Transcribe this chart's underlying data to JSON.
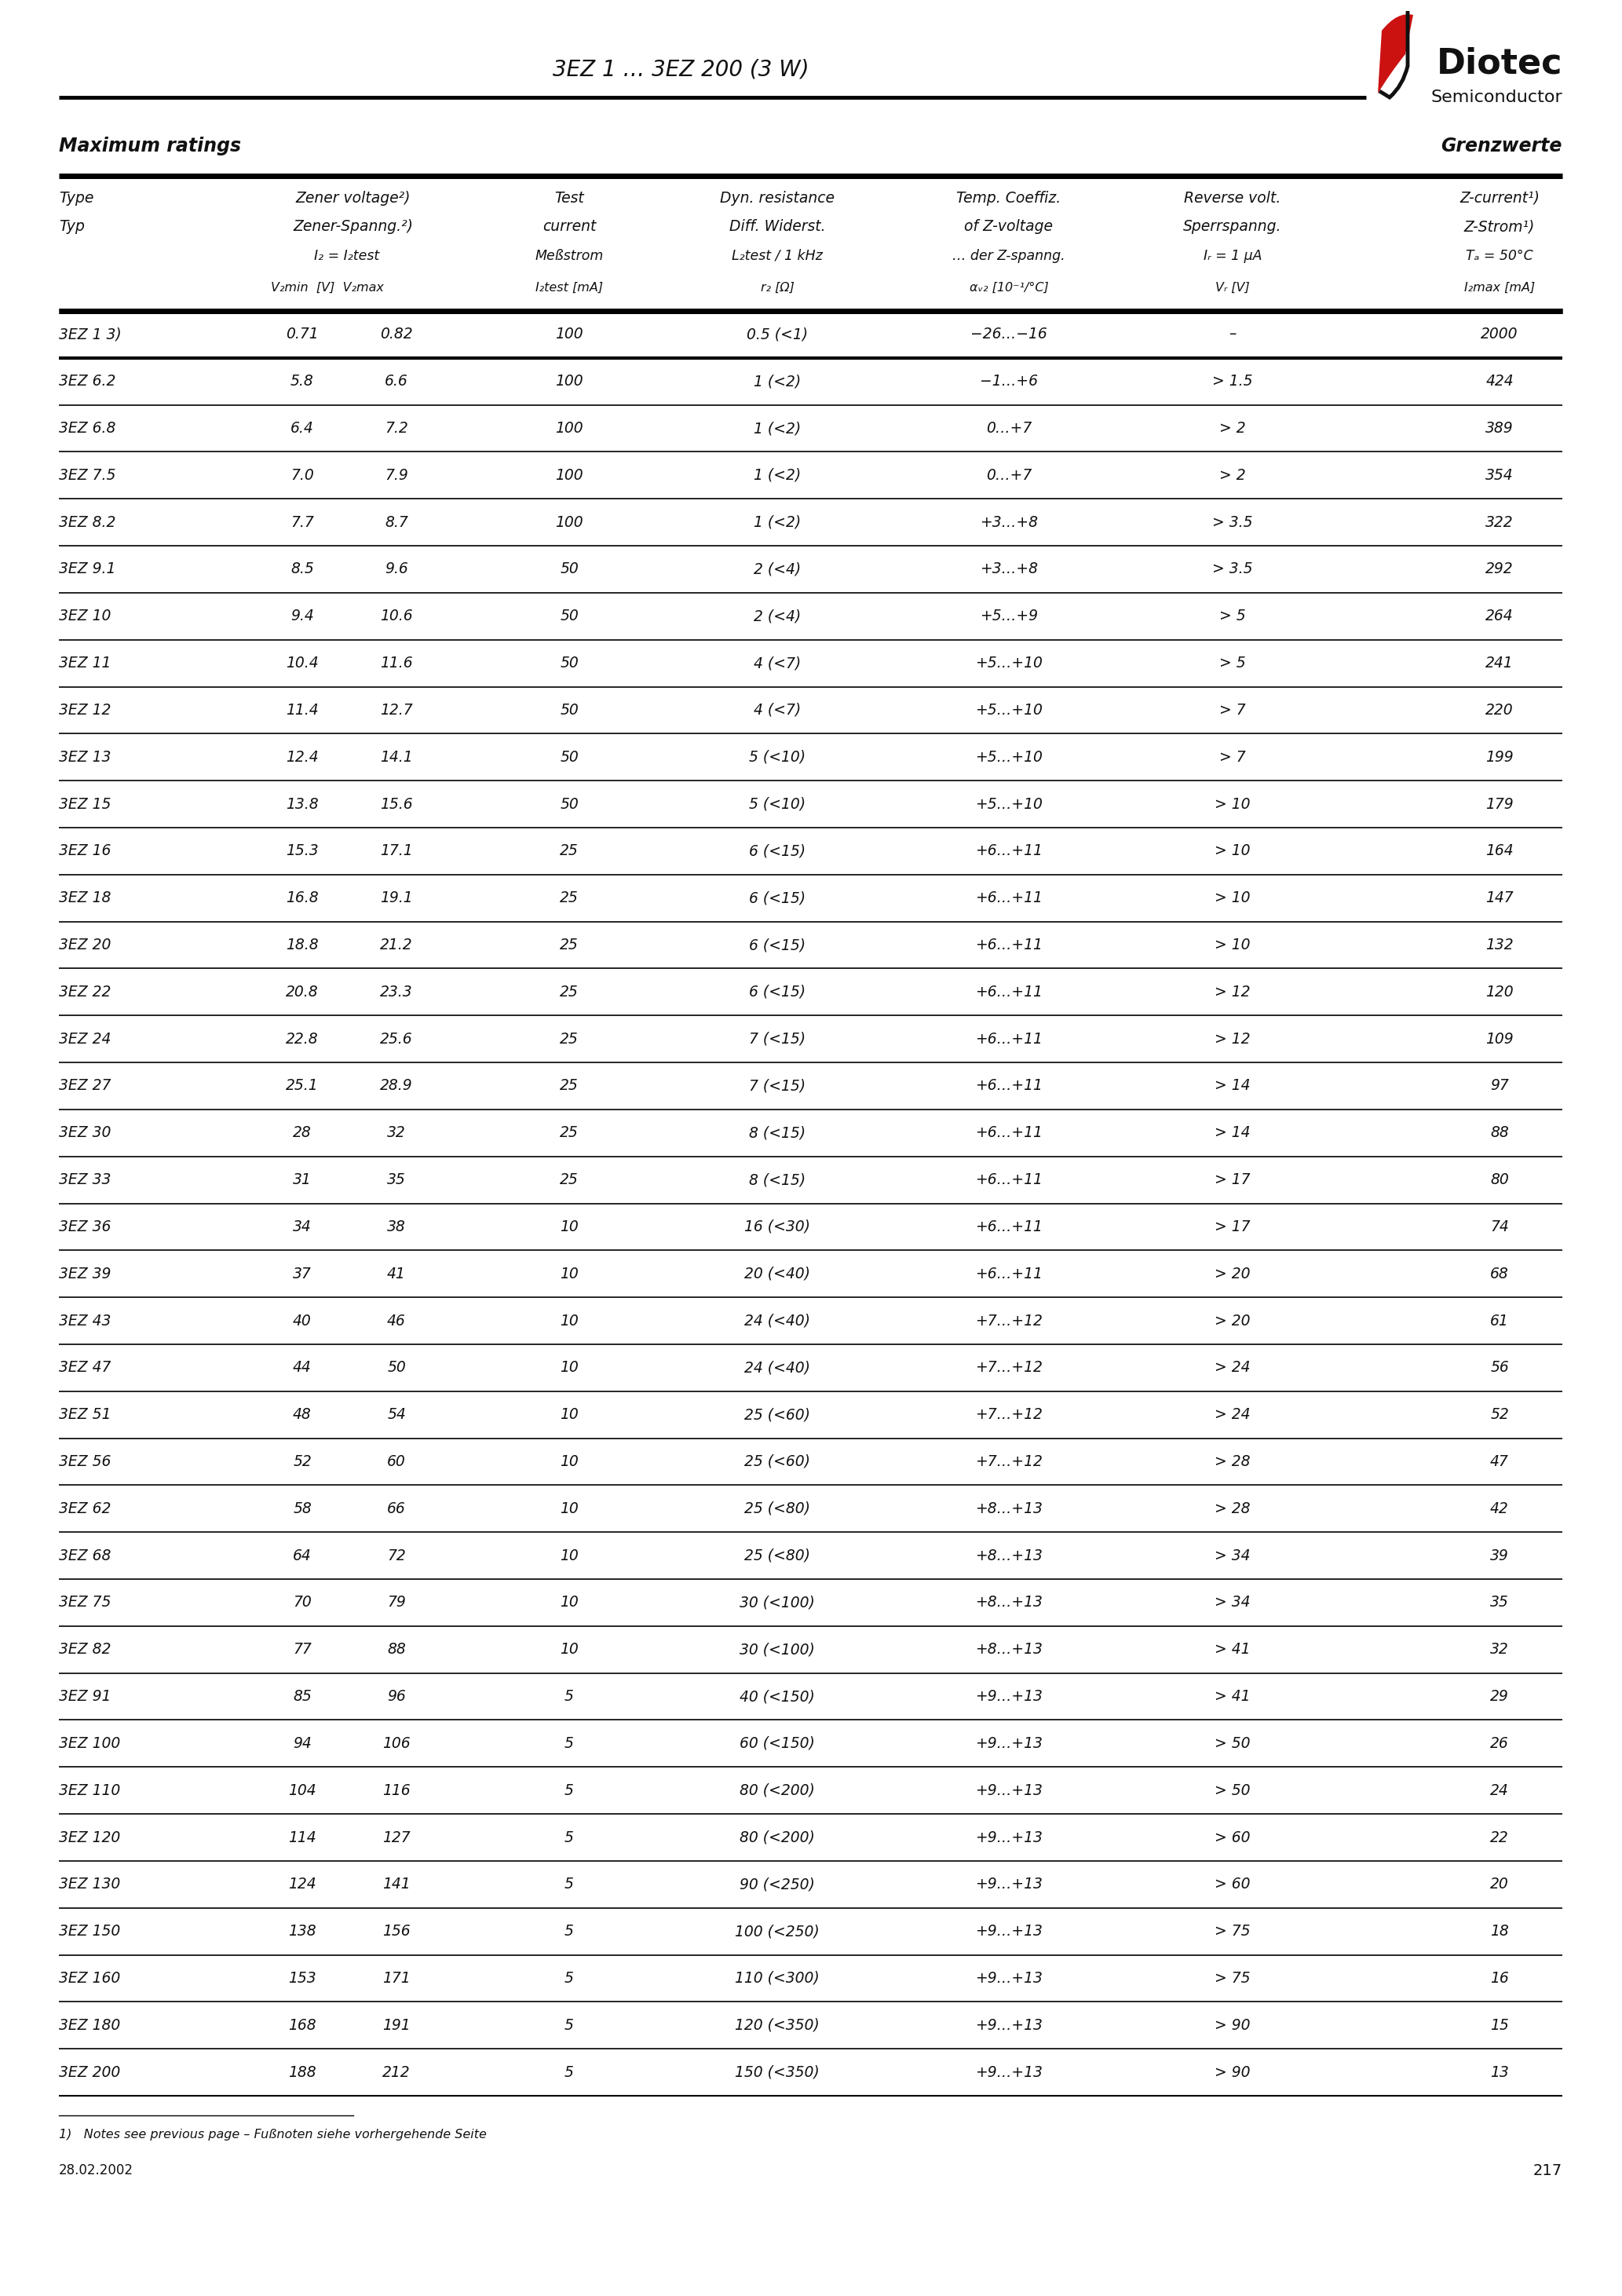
{
  "title": "3EZ 1 … 3EZ 200 (3 W)",
  "header_left": "Maximum ratings",
  "header_right": "Grenzwerte",
  "rows": [
    [
      "3EZ 1 3)",
      "0.71",
      "0.82",
      "100",
      "0.5 (<1)",
      "−26…−16",
      "–",
      "2000"
    ],
    [
      "3EZ 6.2",
      "5.8",
      "6.6",
      "100",
      "1 (<2)",
      "−1…+6",
      "> 1.5",
      "424"
    ],
    [
      "3EZ 6.8",
      "6.4",
      "7.2",
      "100",
      "1 (<2)",
      "0…+7",
      "> 2",
      "389"
    ],
    [
      "3EZ 7.5",
      "7.0",
      "7.9",
      "100",
      "1 (<2)",
      "0…+7",
      "> 2",
      "354"
    ],
    [
      "3EZ 8.2",
      "7.7",
      "8.7",
      "100",
      "1 (<2)",
      "+3…+8",
      "> 3.5",
      "322"
    ],
    [
      "3EZ 9.1",
      "8.5",
      "9.6",
      "50",
      "2 (<4)",
      "+3…+8",
      "> 3.5",
      "292"
    ],
    [
      "3EZ 10",
      "9.4",
      "10.6",
      "50",
      "2 (<4)",
      "+5…+9",
      "> 5",
      "264"
    ],
    [
      "3EZ 11",
      "10.4",
      "11.6",
      "50",
      "4 (<7)",
      "+5…+10",
      "> 5",
      "241"
    ],
    [
      "3EZ 12",
      "11.4",
      "12.7",
      "50",
      "4 (<7)",
      "+5…+10",
      "> 7",
      "220"
    ],
    [
      "3EZ 13",
      "12.4",
      "14.1",
      "50",
      "5 (<10)",
      "+5…+10",
      "> 7",
      "199"
    ],
    [
      "3EZ 15",
      "13.8",
      "15.6",
      "50",
      "5 (<10)",
      "+5…+10",
      "> 10",
      "179"
    ],
    [
      "3EZ 16",
      "15.3",
      "17.1",
      "25",
      "6 (<15)",
      "+6…+11",
      "> 10",
      "164"
    ],
    [
      "3EZ 18",
      "16.8",
      "19.1",
      "25",
      "6 (<15)",
      "+6…+11",
      "> 10",
      "147"
    ],
    [
      "3EZ 20",
      "18.8",
      "21.2",
      "25",
      "6 (<15)",
      "+6…+11",
      "> 10",
      "132"
    ],
    [
      "3EZ 22",
      "20.8",
      "23.3",
      "25",
      "6 (<15)",
      "+6…+11",
      "> 12",
      "120"
    ],
    [
      "3EZ 24",
      "22.8",
      "25.6",
      "25",
      "7 (<15)",
      "+6…+11",
      "> 12",
      "109"
    ],
    [
      "3EZ 27",
      "25.1",
      "28.9",
      "25",
      "7 (<15)",
      "+6…+11",
      "> 14",
      "97"
    ],
    [
      "3EZ 30",
      "28",
      "32",
      "25",
      "8 (<15)",
      "+6…+11",
      "> 14",
      "88"
    ],
    [
      "3EZ 33",
      "31",
      "35",
      "25",
      "8 (<15)",
      "+6…+11",
      "> 17",
      "80"
    ],
    [
      "3EZ 36",
      "34",
      "38",
      "10",
      "16 (<30)",
      "+6…+11",
      "> 17",
      "74"
    ],
    [
      "3EZ 39",
      "37",
      "41",
      "10",
      "20 (<40)",
      "+6…+11",
      "> 20",
      "68"
    ],
    [
      "3EZ 43",
      "40",
      "46",
      "10",
      "24 (<40)",
      "+7…+12",
      "> 20",
      "61"
    ],
    [
      "3EZ 47",
      "44",
      "50",
      "10",
      "24 (<40)",
      "+7…+12",
      "> 24",
      "56"
    ],
    [
      "3EZ 51",
      "48",
      "54",
      "10",
      "25 (<60)",
      "+7…+12",
      "> 24",
      "52"
    ],
    [
      "3EZ 56",
      "52",
      "60",
      "10",
      "25 (<60)",
      "+7…+12",
      "> 28",
      "47"
    ],
    [
      "3EZ 62",
      "58",
      "66",
      "10",
      "25 (<80)",
      "+8…+13",
      "> 28",
      "42"
    ],
    [
      "3EZ 68",
      "64",
      "72",
      "10",
      "25 (<80)",
      "+8…+13",
      "> 34",
      "39"
    ],
    [
      "3EZ 75",
      "70",
      "79",
      "10",
      "30 (<100)",
      "+8…+13",
      "> 34",
      "35"
    ],
    [
      "3EZ 82",
      "77",
      "88",
      "10",
      "30 (<100)",
      "+8…+13",
      "> 41",
      "32"
    ],
    [
      "3EZ 91",
      "85",
      "96",
      "5",
      "40 (<150)",
      "+9…+13",
      "> 41",
      "29"
    ],
    [
      "3EZ 100",
      "94",
      "106",
      "5",
      "60 (<150)",
      "+9…+13",
      "> 50",
      "26"
    ],
    [
      "3EZ 110",
      "104",
      "116",
      "5",
      "80 (<200)",
      "+9…+13",
      "> 50",
      "24"
    ],
    [
      "3EZ 120",
      "114",
      "127",
      "5",
      "80 (<200)",
      "+9…+13",
      "> 60",
      "22"
    ],
    [
      "3EZ 130",
      "124",
      "141",
      "5",
      "90 (<250)",
      "+9…+13",
      "> 60",
      "20"
    ],
    [
      "3EZ 150",
      "138",
      "156",
      "5",
      "100 (<250)",
      "+9…+13",
      "> 75",
      "18"
    ],
    [
      "3EZ 160",
      "153",
      "171",
      "5",
      "110 (<300)",
      "+9…+13",
      "> 75",
      "16"
    ],
    [
      "3EZ 180",
      "168",
      "191",
      "5",
      "120 (<350)",
      "+9…+13",
      "> 90",
      "15"
    ],
    [
      "3EZ 200",
      "188",
      "212",
      "5",
      "150 (<350)",
      "+9…+13",
      "> 90",
      "13"
    ]
  ],
  "footer_note": "1)   Notes see previous page – Fußnoten siehe vorhergehende Seite",
  "footer_date": "28.02.2002",
  "footer_page": "217",
  "bg_color": "#ffffff",
  "text_color": "#000000"
}
